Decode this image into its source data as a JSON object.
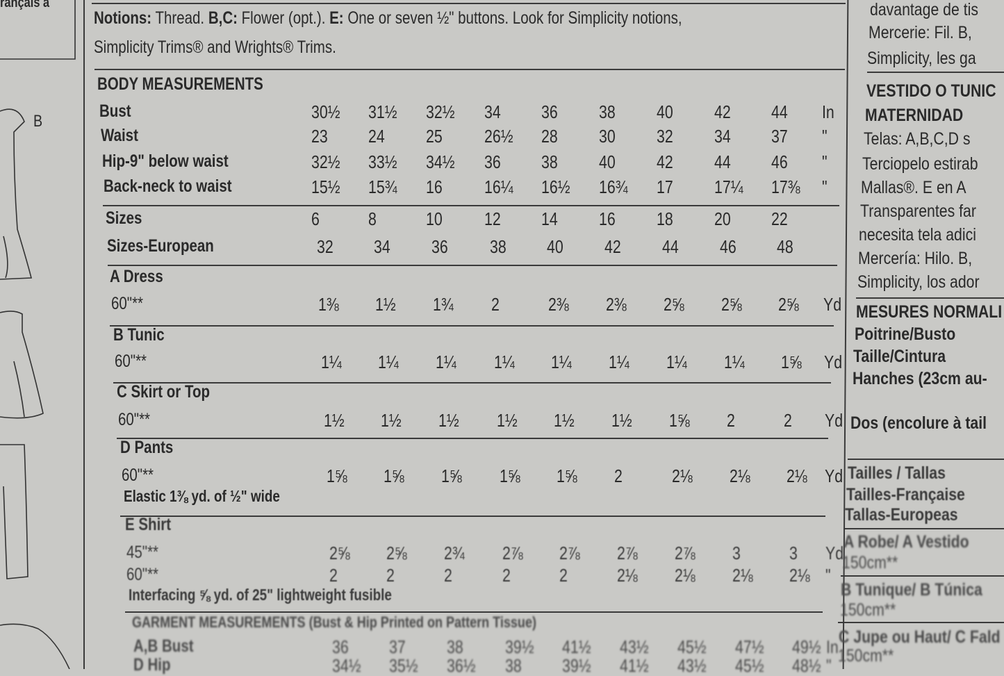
{
  "left_panel": {
    "caption": "rançais à",
    "view_label": "B"
  },
  "notions": {
    "label": "Notions:",
    "text1": "Thread.",
    "bc": "B,C:",
    "text2": "Flower (opt.).",
    "e": "E:",
    "text3": "One or seven ½\" buttons. Look for Simplicity notions,",
    "line2": "Simplicity Trims® and Wrights® Trims."
  },
  "body_measurements": {
    "title": "BODY MEASUREMENTS",
    "rows": [
      {
        "label": "Bust",
        "values": [
          "30½",
          "31½",
          "32½",
          "34",
          "36",
          "38",
          "40",
          "42",
          "44"
        ],
        "unit": "In"
      },
      {
        "label": "Waist",
        "values": [
          "23",
          "24",
          "25",
          "26½",
          "28",
          "30",
          "32",
          "34",
          "37"
        ],
        "unit": "\""
      },
      {
        "label": "Hip-9\" below waist",
        "values": [
          "32½",
          "33½",
          "34½",
          "36",
          "38",
          "40",
          "42",
          "44",
          "46"
        ],
        "unit": "\""
      },
      {
        "label": "Back-neck to waist",
        "values": [
          "15½",
          "15¾",
          "16",
          "16¼",
          "16½",
          "16¾",
          "17",
          "17¼",
          "17⅜"
        ],
        "unit": "\""
      }
    ]
  },
  "sizes": {
    "rows": [
      {
        "label": "Sizes",
        "values": [
          "6",
          "8",
          "10",
          "12",
          "14",
          "16",
          "18",
          "20",
          "22"
        ]
      },
      {
        "label": "Sizes-European",
        "values": [
          "32",
          "34",
          "36",
          "38",
          "40",
          "42",
          "44",
          "46",
          "48"
        ]
      }
    ]
  },
  "yardage": [
    {
      "view": "A Dress",
      "rows": [
        {
          "label": "60\"**",
          "values": [
            "1⅜",
            "1½",
            "1¾",
            "2",
            "2⅜",
            "2⅜",
            "2⅝",
            "2⅝",
            "2⅝"
          ],
          "unit": "Yd"
        }
      ]
    },
    {
      "view": "B Tunic",
      "rows": [
        {
          "label": "60\"**",
          "values": [
            "1¼",
            "1¼",
            "1¼",
            "1¼",
            "1¼",
            "1¼",
            "1¼",
            "1¼",
            "1⅝"
          ],
          "unit": "Yd"
        }
      ]
    },
    {
      "view": "C Skirt or Top",
      "rows": [
        {
          "label": "60\"**",
          "values": [
            "1½",
            "1½",
            "1½",
            "1½",
            "1½",
            "1½",
            "1⅝",
            "2",
            "2"
          ],
          "unit": "Yd"
        }
      ]
    },
    {
      "view": "D Pants",
      "rows": [
        {
          "label": "60\"**",
          "values": [
            "1⅝",
            "1⅝",
            "1⅝",
            "1⅝",
            "1⅝",
            "2",
            "2⅛",
            "2⅛",
            "2⅛"
          ],
          "unit": "Yd"
        }
      ],
      "note": "Elastic 1⅜ yd. of ½\" wide"
    },
    {
      "view": "E Shirt",
      "rows": [
        {
          "label": "45\"**",
          "values": [
            "2⅝",
            "2⅝",
            "2¾",
            "2⅞",
            "2⅞",
            "2⅞",
            "2⅞",
            "3",
            "3"
          ],
          "unit": "Yd"
        },
        {
          "label": "60\"**",
          "values": [
            "2",
            "2",
            "2",
            "2",
            "2",
            "2⅛",
            "2⅛",
            "2⅛",
            "2⅛"
          ],
          "unit": "\""
        }
      ],
      "note": "Interfacing ⅝ yd. of 25\" lightweight fusible"
    }
  ],
  "garment_measurements": {
    "title": "GARMENT MEASUREMENTS (Bust & Hip Printed on Pattern Tissue)",
    "rows": [
      {
        "label": "A,B Bust",
        "values": [
          "36",
          "37",
          "38",
          "39½",
          "41½",
          "43½",
          "45½",
          "47½",
          "49½"
        ],
        "unit": "In"
      },
      {
        "label": "D Hip",
        "values": [
          "34½",
          "35½",
          "36½",
          "38",
          "39½",
          "41½",
          "43½",
          "45½",
          "48½"
        ],
        "unit": "\""
      }
    ]
  },
  "right_column": {
    "lines": [
      {
        "text": "davantage de tis",
        "bold": false
      },
      {
        "text": "Mercerie: Fil. B,",
        "bold": false
      },
      {
        "text": "Simplicity, les ga",
        "bold": false
      },
      {
        "text": "VESTIDO O TUNIC",
        "bold": true
      },
      {
        "text": "MATERNIDAD",
        "bold": true
      },
      {
        "text": "Telas: A,B,C,D s",
        "bold": false
      },
      {
        "text": "Terciopelo estirab",
        "bold": false
      },
      {
        "text": "Mallas®. E en A",
        "bold": false
      },
      {
        "text": "Transparentes far",
        "bold": false
      },
      {
        "text": "necesita tela adici",
        "bold": false
      },
      {
        "text": "Mercería: Hilo. B,",
        "bold": false
      },
      {
        "text": "Simplicity, los ador",
        "bold": false
      },
      {
        "text": "MESURES NORMALI",
        "bold": true
      },
      {
        "text": "Poitrine/Busto",
        "bold": true
      },
      {
        "text": "Taille/Cintura",
        "bold": true
      },
      {
        "text": "Hanches (23cm au-",
        "bold": true
      },
      {
        "text": "Dos (encolure à tail",
        "bold": true
      },
      {
        "text": "Tailles / Tallas",
        "bold": true
      },
      {
        "text": "Tailles-Française",
        "bold": true
      },
      {
        "text": "Tallas-Europeas",
        "bold": true
      },
      {
        "text": "A Robe/ A Vestido",
        "bold": true
      },
      {
        "text": "150cm**",
        "bold": false
      },
      {
        "text": "B Tunique/ B Túnica",
        "bold": true
      },
      {
        "text": "150cm**",
        "bold": false
      },
      {
        "text": "C Jupe ou Haut/ C Fald",
        "bold": true
      },
      {
        "text": "150cm**",
        "bold": false
      }
    ]
  }
}
